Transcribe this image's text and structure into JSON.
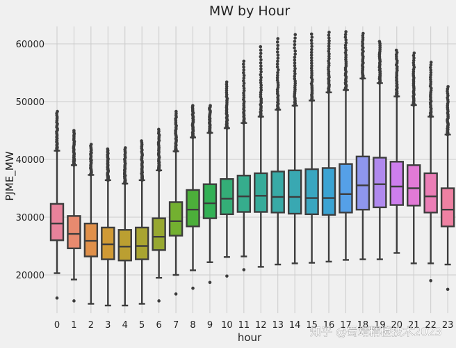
{
  "chart_data": {
    "type": "boxplot",
    "title": "MW by Hour",
    "xlabel": "hour",
    "ylabel": "PJME_MW",
    "ylim": [
      13000,
      63500
    ],
    "yticks": [
      20000,
      30000,
      40000,
      50000,
      60000
    ],
    "ytick_labels": [
      "20000",
      "30000",
      "40000",
      "50000",
      "60000"
    ],
    "categories": [
      "0",
      "1",
      "2",
      "3",
      "4",
      "5",
      "6",
      "7",
      "8",
      "9",
      "10",
      "11",
      "12",
      "13",
      "14",
      "15",
      "16",
      "17",
      "18",
      "19",
      "20",
      "21",
      "22",
      "23"
    ],
    "colors": [
      "#e8829b",
      "#e88a6f",
      "#e0904a",
      "#d09a35",
      "#bb9f31",
      "#a9a431",
      "#97a831",
      "#73b030",
      "#4caf3a",
      "#33b055",
      "#34ae77",
      "#36ad8d",
      "#37ab9a",
      "#38aaa6",
      "#39a8b2",
      "#3aa6c0",
      "#3ba3d2",
      "#55a0e8",
      "#8e96ec",
      "#b08aee",
      "#cd7eed",
      "#e27ad6",
      "#eb7eb6",
      "#ee81a2"
    ],
    "series": [
      {
        "hour": "0",
        "whislo": 20300,
        "q1": 26000,
        "median": 28900,
        "q3": 32300,
        "whishi": 41500,
        "flier_lo": [
          16000
        ],
        "flier_hi_top": 48300
      },
      {
        "hour": "1",
        "whislo": 19200,
        "q1": 24600,
        "median": 27100,
        "q3": 30200,
        "whishi": 39000,
        "flier_lo": [
          15500
        ],
        "flier_hi_top": 45000
      },
      {
        "hour": "2",
        "whislo": 15000,
        "q1": 23200,
        "median": 25900,
        "q3": 28900,
        "whishi": 37300,
        "flier_lo": [],
        "flier_hi_top": 42600
      },
      {
        "hour": "3",
        "whislo": 14700,
        "q1": 22700,
        "median": 25300,
        "q3": 28200,
        "whishi": 36400,
        "flier_lo": [],
        "flier_hi_top": 41800
      },
      {
        "hour": "4",
        "whislo": 14700,
        "q1": 22500,
        "median": 24900,
        "q3": 27800,
        "whishi": 35800,
        "flier_lo": [],
        "flier_hi_top": 42000
      },
      {
        "hour": "5",
        "whislo": 15000,
        "q1": 22700,
        "median": 25000,
        "q3": 28200,
        "whishi": 36400,
        "flier_lo": [],
        "flier_hi_top": 43200
      },
      {
        "hour": "6",
        "whislo": 19500,
        "q1": 24300,
        "median": 26600,
        "q3": 29800,
        "whishi": 38100,
        "flier_lo": [
          15500
        ],
        "flier_hi_top": 45200
      },
      {
        "hour": "7",
        "whislo": 20000,
        "q1": 26800,
        "median": 29300,
        "q3": 32600,
        "whishi": 41400,
        "flier_lo": [
          16700
        ],
        "flier_hi_top": 48300
      },
      {
        "hour": "8",
        "whislo": 20800,
        "q1": 28400,
        "median": 31300,
        "q3": 34700,
        "whishi": 43800,
        "flier_lo": [
          17700
        ],
        "flier_hi_top": 49300
      },
      {
        "hour": "9",
        "whislo": 22200,
        "q1": 29800,
        "median": 32400,
        "q3": 35700,
        "whishi": 44600,
        "flier_lo": [
          18700
        ],
        "flier_hi_top": 49300
      },
      {
        "hour": "10",
        "whislo": 23100,
        "q1": 30500,
        "median": 33200,
        "q3": 36600,
        "whishi": 45400,
        "flier_lo": [
          19800
        ],
        "flier_hi_top": 53400
      },
      {
        "hour": "11",
        "whislo": 23200,
        "q1": 30900,
        "median": 33600,
        "q3": 37200,
        "whishi": 46300,
        "flier_lo": [
          20900
        ],
        "flier_hi_top": 57000
      },
      {
        "hour": "12",
        "whislo": 21400,
        "q1": 30900,
        "median": 33700,
        "q3": 37600,
        "whishi": 47400,
        "flier_lo": [],
        "flier_hi_top": 59500
      },
      {
        "hour": "13",
        "whislo": 21800,
        "q1": 30800,
        "median": 33500,
        "q3": 37900,
        "whishi": 48600,
        "flier_lo": [],
        "flier_hi_top": 60900
      },
      {
        "hour": "14",
        "whislo": 22000,
        "q1": 30600,
        "median": 33500,
        "q3": 38100,
        "whishi": 49300,
        "flier_lo": [],
        "flier_hi_top": 61600
      },
      {
        "hour": "15",
        "whislo": 22100,
        "q1": 30500,
        "median": 33300,
        "q3": 38300,
        "whishi": 50200,
        "flier_lo": [],
        "flier_hi_top": 61700
      },
      {
        "hour": "16",
        "whislo": 22300,
        "q1": 30400,
        "median": 33300,
        "q3": 38500,
        "whishi": 51600,
        "flier_lo": [],
        "flier_hi_top": 62000
      },
      {
        "hour": "17",
        "whislo": 22600,
        "q1": 30800,
        "median": 34000,
        "q3": 39200,
        "whishi": 52000,
        "flier_lo": [],
        "flier_hi_top": 62100
      },
      {
        "hour": "18",
        "whislo": 22700,
        "q1": 31300,
        "median": 35500,
        "q3": 40500,
        "whishi": 54000,
        "flier_lo": [],
        "flier_hi_top": 61800
      },
      {
        "hour": "19",
        "whislo": 22700,
        "q1": 31700,
        "median": 35700,
        "q3": 40300,
        "whishi": 53200,
        "flier_lo": [],
        "flier_hi_top": 60400
      },
      {
        "hour": "20",
        "whislo": 23800,
        "q1": 32100,
        "median": 35300,
        "q3": 39600,
        "whishi": 50900,
        "flier_lo": [],
        "flier_hi_top": 58900
      },
      {
        "hour": "21",
        "whislo": 22000,
        "q1": 32000,
        "median": 35000,
        "q3": 39000,
        "whishi": 49400,
        "flier_lo": [],
        "flier_hi_top": 58400
      },
      {
        "hour": "22",
        "whislo": 22000,
        "q1": 30800,
        "median": 33600,
        "q3": 37600,
        "whishi": 47400,
        "flier_lo": [
          19000
        ],
        "flier_hi_top": 56800
      },
      {
        "hour": "23",
        "whislo": 21800,
        "q1": 28400,
        "median": 31300,
        "q3": 35000,
        "whishi": 44300,
        "flier_lo": [
          17500
        ],
        "flier_hi_top": 52600
      }
    ]
  },
  "watermark": "知乎 @蜀靖精橙技术2023"
}
